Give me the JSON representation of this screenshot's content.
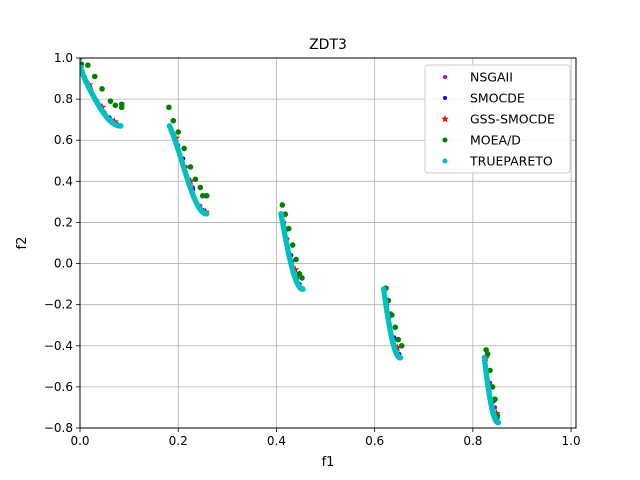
{
  "chart_data": {
    "type": "scatter",
    "title": "ZDT3",
    "xlabel": "f1",
    "ylabel": "f2",
    "xlim": [
      0,
      1.01
    ],
    "ylim": [
      -0.8,
      1.0
    ],
    "xticks": [
      0.0,
      0.2,
      0.4,
      0.6,
      0.8,
      1.0
    ],
    "yticks": [
      -0.8,
      -0.6,
      -0.4,
      -0.2,
      0.0,
      0.2,
      0.4,
      0.6,
      0.8,
      1.0
    ],
    "xtick_labels": [
      "0.0",
      "0.2",
      "0.4",
      "0.6",
      "0.8",
      "1.0"
    ],
    "ytick_labels": [
      "−0.8",
      "−0.6",
      "−0.4",
      "−0.2",
      "0.0",
      "0.2",
      "0.4",
      "0.6",
      "0.8",
      "1.0"
    ],
    "grid": true,
    "legend_position": "top-right",
    "segments": [
      [
        0.0,
        0.083
      ],
      [
        0.1823,
        0.2577
      ],
      [
        0.4093,
        0.4538
      ],
      [
        0.6184,
        0.6525
      ],
      [
        0.8233,
        0.8518
      ]
    ],
    "series": [
      {
        "name": "NSGAII",
        "color": "#bf00bf",
        "marker": "circle-small",
        "points": [
          [
            0.005,
            0.925
          ],
          [
            0.012,
            0.89
          ],
          [
            0.022,
            0.85
          ],
          [
            0.035,
            0.79
          ],
          [
            0.05,
            0.735
          ],
          [
            0.065,
            0.695
          ],
          [
            0.08,
            0.672
          ],
          [
            0.185,
            0.655
          ],
          [
            0.2,
            0.575
          ],
          [
            0.215,
            0.47
          ],
          [
            0.23,
            0.37
          ],
          [
            0.245,
            0.28
          ],
          [
            0.257,
            0.245
          ],
          [
            0.412,
            0.23
          ],
          [
            0.422,
            0.12
          ],
          [
            0.432,
            0.01
          ],
          [
            0.442,
            -0.07
          ],
          [
            0.452,
            -0.12
          ],
          [
            0.62,
            -0.14
          ],
          [
            0.63,
            -0.26
          ],
          [
            0.64,
            -0.37
          ],
          [
            0.652,
            -0.455
          ],
          [
            0.825,
            -0.46
          ],
          [
            0.835,
            -0.58
          ],
          [
            0.845,
            -0.7
          ],
          [
            0.852,
            -0.77
          ]
        ]
      },
      {
        "name": "SMOCDE",
        "color": "#0000ff",
        "marker": "circle-small",
        "points": [
          [
            0.008,
            0.91
          ],
          [
            0.02,
            0.86
          ],
          [
            0.04,
            0.77
          ],
          [
            0.06,
            0.71
          ],
          [
            0.075,
            0.68
          ],
          [
            0.19,
            0.63
          ],
          [
            0.21,
            0.51
          ],
          [
            0.23,
            0.36
          ],
          [
            0.25,
            0.26
          ],
          [
            0.415,
            0.2
          ],
          [
            0.43,
            0.04
          ],
          [
            0.447,
            -0.1
          ],
          [
            0.625,
            -0.2
          ],
          [
            0.64,
            -0.36
          ],
          [
            0.65,
            -0.44
          ],
          [
            0.83,
            -0.52
          ],
          [
            0.842,
            -0.67
          ],
          [
            0.85,
            -0.75
          ]
        ]
      },
      {
        "name": "GSS-SMOCDE",
        "color": "#ff0000",
        "marker": "star",
        "points": [
          [
            0.018,
            0.87
          ],
          [
            0.045,
            0.76
          ],
          [
            0.07,
            0.69
          ],
          [
            0.195,
            0.61
          ],
          [
            0.225,
            0.4
          ],
          [
            0.256,
            0.25
          ],
          [
            0.418,
            0.17
          ],
          [
            0.438,
            -0.03
          ],
          [
            0.628,
            -0.24
          ],
          [
            0.646,
            -0.41
          ],
          [
            0.826,
            -0.46
          ],
          [
            0.848,
            -0.73
          ]
        ]
      },
      {
        "name": "MOEA/D",
        "color": "#008000",
        "marker": "circle",
        "points": [
          [
            0.003,
            0.97
          ],
          [
            0.016,
            0.965
          ],
          [
            0.03,
            0.91
          ],
          [
            0.045,
            0.85
          ],
          [
            0.062,
            0.79
          ],
          [
            0.072,
            0.77
          ],
          [
            0.085,
            0.775
          ],
          [
            0.085,
            0.76
          ],
          [
            0.181,
            0.76
          ],
          [
            0.19,
            0.695
          ],
          [
            0.2,
            0.64
          ],
          [
            0.212,
            0.56
          ],
          [
            0.225,
            0.47
          ],
          [
            0.235,
            0.41
          ],
          [
            0.245,
            0.37
          ],
          [
            0.25,
            0.33
          ],
          [
            0.258,
            0.33
          ],
          [
            0.412,
            0.285
          ],
          [
            0.418,
            0.24
          ],
          [
            0.425,
            0.17
          ],
          [
            0.433,
            0.09
          ],
          [
            0.44,
            0.02
          ],
          [
            0.447,
            -0.05
          ],
          [
            0.452,
            -0.07
          ],
          [
            0.623,
            -0.12
          ],
          [
            0.628,
            -0.18
          ],
          [
            0.635,
            -0.25
          ],
          [
            0.642,
            -0.31
          ],
          [
            0.648,
            -0.37
          ],
          [
            0.655,
            -0.4
          ],
          [
            0.827,
            -0.42
          ],
          [
            0.83,
            -0.44
          ],
          [
            0.835,
            -0.52
          ],
          [
            0.84,
            -0.6
          ],
          [
            0.845,
            -0.66
          ],
          [
            0.85,
            -0.74
          ]
        ]
      },
      {
        "name": "TRUEPARETO",
        "color": "#00bfbf",
        "marker": "circle",
        "points": "frontier"
      }
    ]
  }
}
